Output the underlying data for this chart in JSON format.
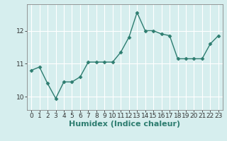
{
  "x": [
    0,
    1,
    2,
    3,
    4,
    5,
    6,
    7,
    8,
    9,
    10,
    11,
    12,
    13,
    14,
    15,
    16,
    17,
    18,
    19,
    20,
    21,
    22,
    23
  ],
  "y": [
    10.8,
    10.9,
    10.4,
    9.95,
    10.45,
    10.45,
    10.6,
    11.05,
    11.05,
    11.05,
    11.05,
    11.35,
    11.8,
    12.55,
    12.0,
    12.0,
    11.9,
    11.85,
    11.15,
    11.15,
    11.15,
    11.15,
    11.6,
    11.85
  ],
  "line_color": "#2e7d70",
  "marker": "D",
  "marker_size": 2.5,
  "bg_color": "#d6eeee",
  "grid_color": "#ffffff",
  "xlabel": "Humidex (Indice chaleur)",
  "xlabel_fontsize": 8,
  "yticks": [
    10,
    11,
    12
  ],
  "ylim": [
    9.6,
    12.8
  ],
  "xlim": [
    -0.5,
    23.5
  ],
  "xtick_labels": [
    "0",
    "1",
    "2",
    "3",
    "4",
    "5",
    "6",
    "7",
    "8",
    "9",
    "10",
    "11",
    "12",
    "13",
    "14",
    "15",
    "16",
    "17",
    "18",
    "19",
    "20",
    "21",
    "22",
    "23"
  ],
  "tick_fontsize": 6.5,
  "linewidth": 1.0
}
